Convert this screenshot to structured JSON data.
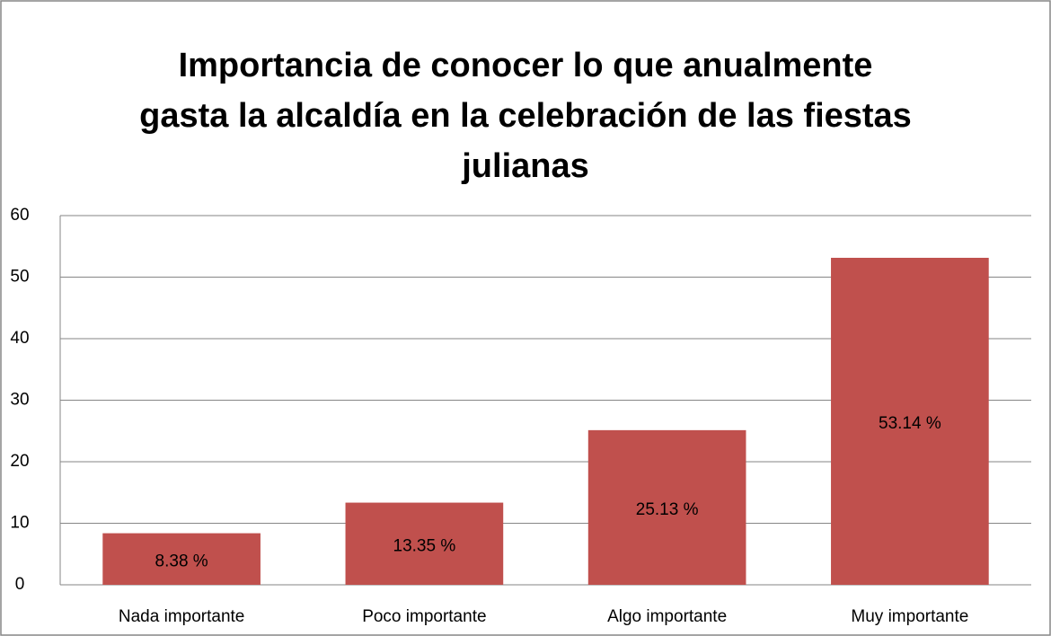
{
  "chart_data": {
    "type": "bar",
    "title": [
      "Importancia de conocer lo que anualmente",
      "gasta la alcaldía en la celebración de las fiestas",
      "julianas"
    ],
    "categories": [
      "Nada importante",
      "Poco importante",
      "Algo importante",
      "Muy importante"
    ],
    "values": [
      8.38,
      13.35,
      25.13,
      53.14
    ],
    "value_labels": [
      "8.38 %",
      "13.35 %",
      "25.13 %",
      "53.14 %"
    ],
    "color": "#c0504d",
    "ylim": [
      0,
      60
    ],
    "yticks": [
      0,
      10,
      20,
      30,
      40,
      50,
      60
    ],
    "grid": true
  }
}
